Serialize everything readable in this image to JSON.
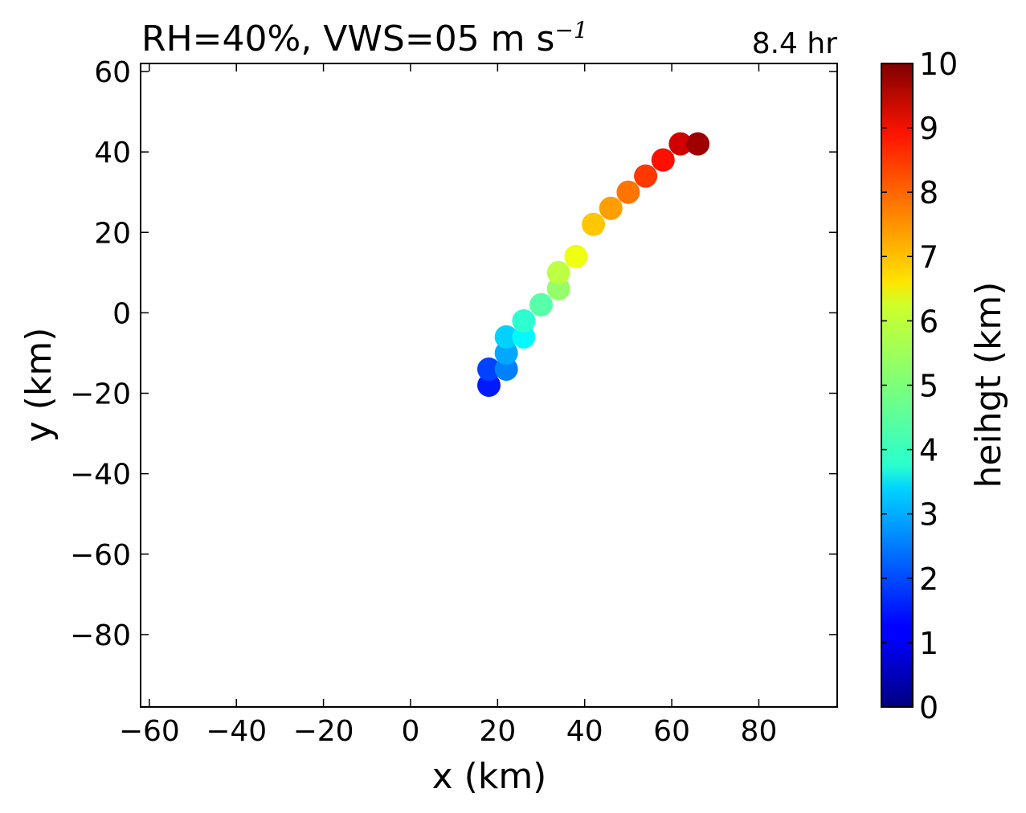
{
  "chart_data": {
    "type": "scatter",
    "title": "RH=40%, VWS=05 m s",
    "title_superscript": "−1",
    "time_label": "8.4 hr",
    "time_label_color": "#0000ff",
    "xlabel": "x (km)",
    "ylabel": "y (km)",
    "xlim": [
      -62,
      98
    ],
    "ylim": [
      -98,
      62
    ],
    "xticks": [
      -60,
      -40,
      -20,
      0,
      20,
      40,
      60,
      80
    ],
    "yticks": [
      60,
      40,
      20,
      0,
      -20,
      -40,
      -60,
      -80
    ],
    "grid": false,
    "colorbar": {
      "label": "heihgt (km)",
      "range": [
        0,
        10
      ],
      "ticks": [
        0,
        1,
        2,
        3,
        4,
        5,
        6,
        7,
        8,
        9,
        10
      ],
      "colormap": "jet"
    },
    "points": [
      {
        "x": 18,
        "y": -18,
        "height": 1.5
      },
      {
        "x": 18,
        "y": -14,
        "height": 1.9
      },
      {
        "x": 22,
        "y": -14,
        "height": 2.5
      },
      {
        "x": 22,
        "y": -10,
        "height": 2.9
      },
      {
        "x": 22,
        "y": -6,
        "height": 3.3
      },
      {
        "x": 26,
        "y": -6,
        "height": 3.7
      },
      {
        "x": 26,
        "y": -2,
        "height": 4.2
      },
      {
        "x": 30,
        "y": 2,
        "height": 4.6
      },
      {
        "x": 34,
        "y": 6,
        "height": 5.2
      },
      {
        "x": 34,
        "y": 10,
        "height": 5.6
      },
      {
        "x": 38,
        "y": 14,
        "height": 6.1
      },
      {
        "x": 42,
        "y": 22,
        "height": 6.8
      },
      {
        "x": 46,
        "y": 26,
        "height": 7.2
      },
      {
        "x": 50,
        "y": 30,
        "height": 7.6
      },
      {
        "x": 54,
        "y": 34,
        "height": 8.2
      },
      {
        "x": 58,
        "y": 38,
        "height": 8.6
      },
      {
        "x": 62,
        "y": 42,
        "height": 9.2
      },
      {
        "x": 66,
        "y": 42,
        "height": 9.7
      }
    ]
  }
}
